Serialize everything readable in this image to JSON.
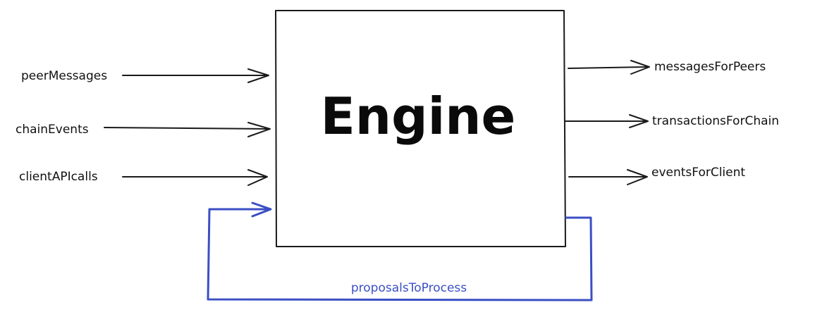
{
  "engine": {
    "label": "Engine"
  },
  "inputs": [
    {
      "label": "peerMessages"
    },
    {
      "label": "chainEvents"
    },
    {
      "label": "clientAPIcalls"
    }
  ],
  "outputs": [
    {
      "label": "messagesForPeers"
    },
    {
      "label": "transactionsForChain"
    },
    {
      "label": "eventsForClient"
    }
  ],
  "feedback": {
    "label": "proposalsToProcess"
  },
  "colors": {
    "ink": "#1a1a1a",
    "feedback": "#3b4fc4"
  }
}
